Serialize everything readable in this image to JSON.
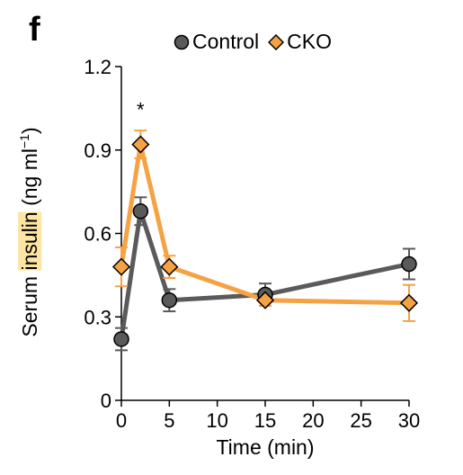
{
  "panel_label": "f",
  "colors": {
    "control": "#5a5a5a",
    "cko": "#f5a245",
    "highlight": "#fde4a2"
  },
  "y_axis_label": {
    "pre": "Serum ",
    "highlighted": "insulin",
    "post": " (ng ml",
    "sup": "−1",
    "close": ")"
  },
  "chart_data": {
    "type": "line",
    "x": [
      0,
      2,
      5,
      15,
      30
    ],
    "xlabel": "Time (min)",
    "xlim": [
      0,
      30
    ],
    "ylim": [
      0,
      1.2
    ],
    "xticks": [
      0,
      5,
      10,
      15,
      20,
      25,
      30
    ],
    "yticks": [
      0,
      0.3,
      0.6,
      0.9,
      1.2
    ],
    "ytick_labels": [
      "0",
      "0.3",
      "0.6",
      "0.9",
      "1.2"
    ],
    "legend": "top",
    "grid": false,
    "series": [
      {
        "name": "Control",
        "marker": "circle",
        "color": "#5a5a5a",
        "values": [
          0.22,
          0.68,
          0.36,
          0.38,
          0.49
        ],
        "errors": [
          0.04,
          0.05,
          0.04,
          0.04,
          0.055
        ]
      },
      {
        "name": "CKO",
        "marker": "diamond",
        "color": "#f5a245",
        "values": [
          0.48,
          0.92,
          0.48,
          0.36,
          0.35
        ],
        "errors": [
          0.07,
          0.05,
          0.04,
          0.02,
          0.065
        ]
      }
    ],
    "annotations": [
      {
        "text": "*",
        "x": 2,
        "y": 1.06
      }
    ]
  }
}
